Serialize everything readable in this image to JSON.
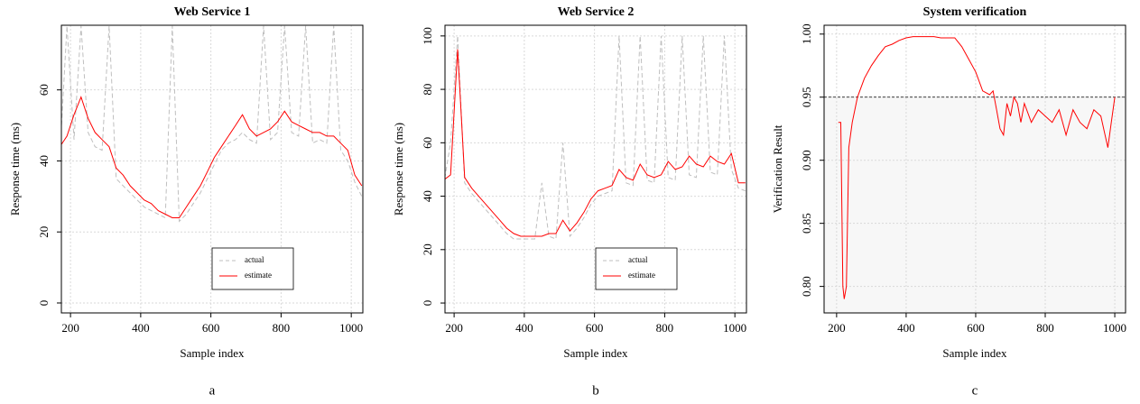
{
  "chart_data": [
    {
      "type": "line",
      "title": "Web Service 1",
      "xlabel": "Sample index",
      "ylabel": "Response time (ms)",
      "caption": "a",
      "x": [
        170,
        190,
        210,
        230,
        250,
        270,
        290,
        310,
        330,
        350,
        370,
        390,
        410,
        430,
        450,
        470,
        490,
        510,
        530,
        550,
        570,
        590,
        610,
        630,
        650,
        670,
        690,
        710,
        730,
        750,
        770,
        790,
        810,
        830,
        850,
        870,
        890,
        910,
        930,
        950,
        970,
        990,
        1010,
        1030
      ],
      "series": [
        {
          "name": "actual",
          "color": "#bfbfbf",
          "dashed": true,
          "values": [
            42,
            78,
            46,
            78,
            48,
            44,
            43,
            78,
            35,
            33,
            31,
            29,
            27,
            26,
            25,
            24,
            78,
            23,
            25,
            28,
            31,
            35,
            39,
            43,
            45,
            46,
            48,
            46,
            45,
            78,
            46,
            48,
            78,
            48,
            47,
            78,
            45,
            46,
            45,
            78,
            43,
            40,
            34,
            30
          ]
        },
        {
          "name": "estimate",
          "color": "#ff0000",
          "values": [
            44,
            47,
            53,
            58,
            52,
            48,
            46,
            44,
            38,
            36,
            33,
            31,
            29,
            28,
            26,
            25,
            24,
            24,
            27,
            30,
            33,
            37,
            41,
            44,
            47,
            50,
            53,
            49,
            47,
            48,
            49,
            51,
            54,
            51,
            50,
            49,
            48,
            48,
            47,
            47,
            45,
            43,
            36,
            33
          ]
        }
      ],
      "xlim": [
        174,
        1033
      ],
      "ylim": [
        -2.8,
        78.2
      ],
      "xticks": [
        200,
        400,
        600,
        800,
        1000
      ],
      "yticks": [
        0,
        20,
        40,
        60
      ],
      "grid": true,
      "legend": "lower center"
    },
    {
      "type": "line",
      "title": "Web Service 2",
      "xlabel": "Sample index",
      "ylabel": "Response time (ms)",
      "caption": "b",
      "x": [
        170,
        190,
        210,
        230,
        250,
        270,
        290,
        310,
        330,
        350,
        370,
        390,
        410,
        430,
        450,
        470,
        490,
        510,
        530,
        550,
        570,
        590,
        610,
        630,
        650,
        670,
        690,
        710,
        730,
        750,
        770,
        790,
        810,
        830,
        850,
        870,
        890,
        910,
        930,
        950,
        970,
        990,
        1010,
        1030
      ],
      "series": [
        {
          "name": "actual",
          "color": "#bfbfbf",
          "dashed": true,
          "values": [
            44,
            60,
            100,
            45,
            41,
            38,
            35,
            32,
            29,
            26,
            24,
            24,
            24,
            24,
            45,
            25,
            24,
            60,
            25,
            28,
            32,
            37,
            40,
            41,
            42,
            100,
            45,
            44,
            100,
            46,
            45,
            100,
            47,
            46,
            100,
            48,
            47,
            100,
            49,
            48,
            100,
            50,
            43,
            42
          ]
        },
        {
          "name": "estimate",
          "color": "#ff0000",
          "values": [
            46,
            48,
            95,
            47,
            43,
            40,
            37,
            34,
            31,
            28,
            26,
            25,
            25,
            25,
            25,
            26,
            26,
            31,
            27,
            30,
            34,
            39,
            42,
            43,
            44,
            50,
            47,
            46,
            52,
            48,
            47,
            48,
            53,
            50,
            51,
            55,
            52,
            51,
            55,
            53,
            52,
            56,
            45,
            45
          ]
        }
      ],
      "xlim": [
        174,
        1033
      ],
      "ylim": [
        -3.7,
        104
      ],
      "xticks": [
        200,
        400,
        600,
        800,
        1000
      ],
      "yticks": [
        0,
        20,
        40,
        60,
        80,
        100
      ],
      "grid": true,
      "legend": "lower center"
    },
    {
      "type": "line",
      "title": "System verification",
      "xlabel": "Sample index",
      "ylabel": "Verification Result",
      "caption": "c",
      "x": [
        205,
        212,
        218,
        222,
        228,
        235,
        245,
        260,
        280,
        300,
        320,
        340,
        360,
        380,
        400,
        420,
        440,
        460,
        480,
        500,
        520,
        540,
        560,
        580,
        600,
        620,
        640,
        650,
        660,
        670,
        680,
        690,
        700,
        710,
        720,
        730,
        740,
        760,
        780,
        800,
        820,
        840,
        860,
        880,
        900,
        920,
        940,
        960,
        980,
        990,
        1000
      ],
      "series": [
        {
          "color": "#ff0000",
          "values": [
            0.93,
            0.93,
            0.8,
            0.79,
            0.8,
            0.91,
            0.93,
            0.95,
            0.965,
            0.975,
            0.983,
            0.99,
            0.992,
            0.995,
            0.997,
            0.998,
            0.998,
            0.998,
            0.998,
            0.997,
            0.997,
            0.997,
            0.99,
            0.98,
            0.97,
            0.955,
            0.952,
            0.955,
            0.94,
            0.925,
            0.92,
            0.945,
            0.935,
            0.95,
            0.945,
            0.93,
            0.945,
            0.93,
            0.94,
            0.935,
            0.93,
            0.94,
            0.92,
            0.94,
            0.93,
            0.925,
            0.94,
            0.935,
            0.91,
            0.93,
            0.95
          ]
        }
      ],
      "hline": 0.95,
      "xlim": [
        164,
        1031
      ],
      "ylim": [
        0.779,
        1.007
      ],
      "xticks": [
        200,
        400,
        600,
        800,
        1000
      ],
      "yticks": [
        {
          "value": 0.8,
          "label": "0.80"
        },
        0.85,
        {
          "value": 0.9,
          "label": "0.90"
        },
        0.95,
        {
          "value": 1.0,
          "label": "1.00"
        }
      ],
      "grid": true
    }
  ]
}
